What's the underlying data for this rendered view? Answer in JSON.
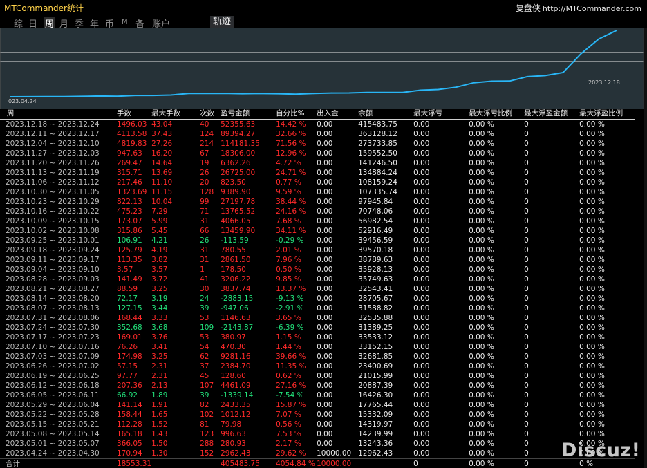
{
  "app_title": "MTCommander统计",
  "brand": {
    "name": "复盘侠",
    "url": "http://MTCommander.com"
  },
  "tabs": [
    {
      "label": "综"
    },
    {
      "label": "日"
    },
    {
      "label": "周"
    },
    {
      "label": "月"
    },
    {
      "label": "季"
    },
    {
      "label": "年"
    },
    {
      "label": "币"
    },
    {
      "label": "M"
    },
    {
      "label": "备"
    },
    {
      "label": "账户"
    }
  ],
  "active_tab": "周",
  "track_button": "轨迹",
  "colors": {
    "profit": "#ff2a2a",
    "loss": "#22e07a",
    "curve": "#29b6f6",
    "chart_bg": "#263238"
  },
  "chart_data": {
    "type": "line",
    "x_start_label": "023.04.24",
    "x_end_label": "2023.12.18",
    "series": [
      {
        "values": [
          12962.43,
          13243.36,
          14239.99,
          14319.97,
          15332.09,
          17765.44,
          16426.3,
          20887.39,
          21015.99,
          23400.69,
          32681.85,
          33152.15,
          33533.12,
          31389.25,
          32535.88,
          31588.82,
          28705.67,
          32543.41,
          35749.63,
          35928.13,
          38789.63,
          39570.18,
          39456.59,
          52916.49,
          56982.54,
          70748.06,
          97945.84,
          107335.74,
          108159.24,
          134884.24,
          141246.5,
          159552.5,
          273733.85,
          363128.12,
          415483.75
        ]
      }
    ]
  },
  "table": {
    "headers": [
      "周",
      "手数",
      "最大手数",
      "次数",
      "盈亏金额",
      "自分比%",
      "出入金",
      "余额",
      "最大浮亏",
      "最大浮亏比例",
      "最大浮盈金额",
      "最大浮盈比例"
    ],
    "rows": [
      {
        "period": "2023.12.18 ~ 2023.12.24",
        "lots": "1496.03",
        "max_lots": "43.04",
        "trades": "40",
        "pnl": "52355.63",
        "pct": "14.42 %",
        "inout": "0.00",
        "balance": "415483.75",
        "max_dd": "0.00",
        "max_dd_pct": "0.00 %",
        "max_fp": "0",
        "max_fp_pct": "0.00 %",
        "sign": "loss"
      },
      {
        "period": "2023.12.11 ~ 2023.12.17",
        "lots": "4113.58",
        "max_lots": "37.43",
        "trades": "124",
        "pnl": "89394.27",
        "pct": "32.66 %",
        "inout": "0.00",
        "balance": "363128.12",
        "max_dd": "0.00",
        "max_dd_pct": "0.00 %",
        "max_fp": "0",
        "max_fp_pct": "0.00 %",
        "sign": "loss"
      },
      {
        "period": "2023.12.04 ~ 2023.12.10",
        "lots": "4819.83",
        "max_lots": "27.26",
        "trades": "214",
        "pnl": "114181.35",
        "pct": "71.56 %",
        "inout": "0.00",
        "balance": "273733.85",
        "max_dd": "0.00",
        "max_dd_pct": "0.00 %",
        "max_fp": "0",
        "max_fp_pct": "0.00 %",
        "sign": "loss"
      },
      {
        "period": "2023.11.27 ~ 2023.12.03",
        "lots": "947.63",
        "max_lots": "16.20",
        "trades": "67",
        "pnl": "18306.00",
        "pct": "12.96 %",
        "inout": "0.00",
        "balance": "159552.50",
        "max_dd": "0.00",
        "max_dd_pct": "0.00 %",
        "max_fp": "0",
        "max_fp_pct": "0.00 %",
        "sign": "loss"
      },
      {
        "period": "2023.11.20 ~ 2023.11.26",
        "lots": "269.47",
        "max_lots": "14.64",
        "trades": "19",
        "pnl": "6362.26",
        "pct": "4.72 %",
        "inout": "0.00",
        "balance": "141246.50",
        "max_dd": "0.00",
        "max_dd_pct": "0.00 %",
        "max_fp": "0",
        "max_fp_pct": "0.00 %",
        "sign": "loss"
      },
      {
        "period": "2023.11.13 ~ 2023.11.19",
        "lots": "315.71",
        "max_lots": "13.69",
        "trades": "26",
        "pnl": "26725.00",
        "pct": "24.71 %",
        "inout": "0.00",
        "balance": "134884.24",
        "max_dd": "0.00",
        "max_dd_pct": "0.00 %",
        "max_fp": "0",
        "max_fp_pct": "0.00 %",
        "sign": "loss"
      },
      {
        "period": "2023.11.06 ~ 2023.11.12",
        "lots": "217.46",
        "max_lots": "11.10",
        "trades": "20",
        "pnl": "823.50",
        "pct": "0.77 %",
        "inout": "0.00",
        "balance": "108159.24",
        "max_dd": "0.00",
        "max_dd_pct": "0.00 %",
        "max_fp": "0",
        "max_fp_pct": "0.00 %",
        "sign": "loss"
      },
      {
        "period": "2023.10.30 ~ 2023.11.05",
        "lots": "1323.69",
        "max_lots": "11.15",
        "trades": "128",
        "pnl": "9389.90",
        "pct": "9.59 %",
        "inout": "0.00",
        "balance": "107335.74",
        "max_dd": "0.00",
        "max_dd_pct": "0.00 %",
        "max_fp": "0",
        "max_fp_pct": "0.00 %",
        "sign": "loss"
      },
      {
        "period": "2023.10.23 ~ 2023.10.29",
        "lots": "822.13",
        "max_lots": "10.04",
        "trades": "99",
        "pnl": "27197.78",
        "pct": "38.44 %",
        "inout": "0.00",
        "balance": "97945.84",
        "max_dd": "0.00",
        "max_dd_pct": "0.00 %",
        "max_fp": "0",
        "max_fp_pct": "0.00 %",
        "sign": "loss"
      },
      {
        "period": "2023.10.16 ~ 2023.10.22",
        "lots": "475.23",
        "max_lots": "7.29",
        "trades": "71",
        "pnl": "13765.52",
        "pct": "24.16 %",
        "inout": "0.00",
        "balance": "70748.06",
        "max_dd": "0.00",
        "max_dd_pct": "0.00 %",
        "max_fp": "0",
        "max_fp_pct": "0.00 %",
        "sign": "loss"
      },
      {
        "period": "2023.10.09 ~ 2023.10.15",
        "lots": "173.07",
        "max_lots": "5.99",
        "trades": "31",
        "pnl": "4066.05",
        "pct": "7.68 %",
        "inout": "0.00",
        "balance": "56982.54",
        "max_dd": "0.00",
        "max_dd_pct": "0.00 %",
        "max_fp": "0",
        "max_fp_pct": "0.00 %",
        "sign": "loss"
      },
      {
        "period": "2023.10.02 ~ 2023.10.08",
        "lots": "315.86",
        "max_lots": "5.45",
        "trades": "66",
        "pnl": "13459.90",
        "pct": "34.11 %",
        "inout": "0.00",
        "balance": "52916.49",
        "max_dd": "0.00",
        "max_dd_pct": "0.00 %",
        "max_fp": "0",
        "max_fp_pct": "0.00 %",
        "sign": "loss"
      },
      {
        "period": "2023.09.25 ~ 2023.10.01",
        "lots": "106.91",
        "max_lots": "4.21",
        "trades": "26",
        "pnl": "-113.59",
        "pct": "-0.29 %",
        "inout": "0.00",
        "balance": "39456.59",
        "max_dd": "0.00",
        "max_dd_pct": "0.00 %",
        "max_fp": "0",
        "max_fp_pct": "0.00 %",
        "sign": "gain"
      },
      {
        "period": "2023.09.18 ~ 2023.09.24",
        "lots": "125.79",
        "max_lots": "4.19",
        "trades": "31",
        "pnl": "780.55",
        "pct": "2.01 %",
        "inout": "0.00",
        "balance": "39570.18",
        "max_dd": "0.00",
        "max_dd_pct": "0.00 %",
        "max_fp": "0",
        "max_fp_pct": "0.00 %",
        "sign": "loss"
      },
      {
        "period": "2023.09.11 ~ 2023.09.17",
        "lots": "113.35",
        "max_lots": "3.82",
        "trades": "31",
        "pnl": "2861.50",
        "pct": "7.96 %",
        "inout": "0.00",
        "balance": "38789.63",
        "max_dd": "0.00",
        "max_dd_pct": "0.00 %",
        "max_fp": "0",
        "max_fp_pct": "0.00 %",
        "sign": "loss"
      },
      {
        "period": "2023.09.04 ~ 2023.09.10",
        "lots": "3.57",
        "max_lots": "3.57",
        "trades": "1",
        "pnl": "178.50",
        "pct": "0.50 %",
        "inout": "0.00",
        "balance": "35928.13",
        "max_dd": "0.00",
        "max_dd_pct": "0.00 %",
        "max_fp": "0",
        "max_fp_pct": "0.00 %",
        "sign": "loss"
      },
      {
        "period": "2023.08.28 ~ 2023.09.03",
        "lots": "141.49",
        "max_lots": "3.72",
        "trades": "41",
        "pnl": "3206.22",
        "pct": "9.85 %",
        "inout": "0.00",
        "balance": "35749.63",
        "max_dd": "0.00",
        "max_dd_pct": "0.00 %",
        "max_fp": "0",
        "max_fp_pct": "0.00 %",
        "sign": "loss"
      },
      {
        "period": "2023.08.21 ~ 2023.08.27",
        "lots": "88.59",
        "max_lots": "3.25",
        "trades": "30",
        "pnl": "3837.74",
        "pct": "13.37 %",
        "inout": "0.00",
        "balance": "32543.41",
        "max_dd": "0.00",
        "max_dd_pct": "0.00 %",
        "max_fp": "0",
        "max_fp_pct": "0.00 %",
        "sign": "loss"
      },
      {
        "period": "2023.08.14 ~ 2023.08.20",
        "lots": "72.17",
        "max_lots": "3.19",
        "trades": "24",
        "pnl": "-2883.15",
        "pct": "-9.13 %",
        "inout": "0.00",
        "balance": "28705.67",
        "max_dd": "0.00",
        "max_dd_pct": "0.00 %",
        "max_fp": "0",
        "max_fp_pct": "0.00 %",
        "sign": "gain"
      },
      {
        "period": "2023.08.07 ~ 2023.08.13",
        "lots": "127.15",
        "max_lots": "3.44",
        "trades": "39",
        "pnl": "-947.06",
        "pct": "-2.91 %",
        "inout": "0.00",
        "balance": "31588.82",
        "max_dd": "0.00",
        "max_dd_pct": "0.00 %",
        "max_fp": "0",
        "max_fp_pct": "0.00 %",
        "sign": "gain"
      },
      {
        "period": "2023.07.31 ~ 2023.08.06",
        "lots": "168.44",
        "max_lots": "3.33",
        "trades": "53",
        "pnl": "1146.63",
        "pct": "3.65 %",
        "inout": "0.00",
        "balance": "32535.88",
        "max_dd": "0.00",
        "max_dd_pct": "0.00 %",
        "max_fp": "0",
        "max_fp_pct": "0.00 %",
        "sign": "loss"
      },
      {
        "period": "2023.07.24 ~ 2023.07.30",
        "lots": "352.68",
        "max_lots": "3.68",
        "trades": "109",
        "pnl": "-2143.87",
        "pct": "-6.39 %",
        "inout": "0.00",
        "balance": "31389.25",
        "max_dd": "0.00",
        "max_dd_pct": "0.00 %",
        "max_fp": "0",
        "max_fp_pct": "0.00 %",
        "sign": "gain"
      },
      {
        "period": "2023.07.17 ~ 2023.07.23",
        "lots": "169.01",
        "max_lots": "3.76",
        "trades": "53",
        "pnl": "380.97",
        "pct": "1.15 %",
        "inout": "0.00",
        "balance": "33533.12",
        "max_dd": "0.00",
        "max_dd_pct": "0.00 %",
        "max_fp": "0",
        "max_fp_pct": "0.00 %",
        "sign": "loss"
      },
      {
        "period": "2023.07.10 ~ 2023.07.16",
        "lots": "76.26",
        "max_lots": "3.41",
        "trades": "54",
        "pnl": "470.30",
        "pct": "1.44 %",
        "inout": "0.00",
        "balance": "33152.15",
        "max_dd": "0.00",
        "max_dd_pct": "0.00 %",
        "max_fp": "0",
        "max_fp_pct": "0.00 %",
        "sign": "loss"
      },
      {
        "period": "2023.07.03 ~ 2023.07.09",
        "lots": "174.98",
        "max_lots": "3.25",
        "trades": "62",
        "pnl": "9281.16",
        "pct": "39.66 %",
        "inout": "0.00",
        "balance": "32681.85",
        "max_dd": "0.00",
        "max_dd_pct": "0.00 %",
        "max_fp": "0",
        "max_fp_pct": "0.00 %",
        "sign": "loss"
      },
      {
        "period": "2023.06.26 ~ 2023.07.02",
        "lots": "57.15",
        "max_lots": "2.31",
        "trades": "37",
        "pnl": "2384.70",
        "pct": "11.35 %",
        "inout": "0.00",
        "balance": "23400.69",
        "max_dd": "0.00",
        "max_dd_pct": "0.00 %",
        "max_fp": "0",
        "max_fp_pct": "0.00 %",
        "sign": "loss"
      },
      {
        "period": "2023.06.19 ~ 2023.06.25",
        "lots": "97.77",
        "max_lots": "2.31",
        "trades": "45",
        "pnl": "128.60",
        "pct": "0.62 %",
        "inout": "0.00",
        "balance": "21015.99",
        "max_dd": "0.00",
        "max_dd_pct": "0.00 %",
        "max_fp": "0",
        "max_fp_pct": "0.00 %",
        "sign": "loss"
      },
      {
        "period": "2023.06.12 ~ 2023.06.18",
        "lots": "207.36",
        "max_lots": "2.13",
        "trades": "107",
        "pnl": "4461.09",
        "pct": "27.16 %",
        "inout": "0.00",
        "balance": "20887.39",
        "max_dd": "0.00",
        "max_dd_pct": "0.00 %",
        "max_fp": "0",
        "max_fp_pct": "0.00 %",
        "sign": "loss"
      },
      {
        "period": "2023.06.05 ~ 2023.06.11",
        "lots": "66.92",
        "max_lots": "1.89",
        "trades": "39",
        "pnl": "-1339.14",
        "pct": "-7.54 %",
        "inout": "0.00",
        "balance": "16426.30",
        "max_dd": "0.00",
        "max_dd_pct": "0.00 %",
        "max_fp": "0",
        "max_fp_pct": "0.00 %",
        "sign": "gain"
      },
      {
        "period": "2023.05.29 ~ 2023.06.04",
        "lots": "141.14",
        "max_lots": "1.91",
        "trades": "82",
        "pnl": "2433.35",
        "pct": "15.87 %",
        "inout": "0.00",
        "balance": "17765.44",
        "max_dd": "0.00",
        "max_dd_pct": "0.00 %",
        "max_fp": "0",
        "max_fp_pct": "0.00 %",
        "sign": "loss"
      },
      {
        "period": "2023.05.22 ~ 2023.05.28",
        "lots": "158.44",
        "max_lots": "1.65",
        "trades": "102",
        "pnl": "1012.12",
        "pct": "7.07 %",
        "inout": "0.00",
        "balance": "15332.09",
        "max_dd": "0.00",
        "max_dd_pct": "0.00 %",
        "max_fp": "0",
        "max_fp_pct": "0.00 %",
        "sign": "loss"
      },
      {
        "period": "2023.05.15 ~ 2023.05.21",
        "lots": "112.28",
        "max_lots": "1.52",
        "trades": "81",
        "pnl": "79.98",
        "pct": "0.56 %",
        "inout": "0.00",
        "balance": "14319.97",
        "max_dd": "0.00",
        "max_dd_pct": "0.00 %",
        "max_fp": "0",
        "max_fp_pct": "0.00 %",
        "sign": "loss"
      },
      {
        "period": "2023.05.08 ~ 2023.05.14",
        "lots": "165.18",
        "max_lots": "1.43",
        "trades": "123",
        "pnl": "996.63",
        "pct": "7.53 %",
        "inout": "0.00",
        "balance": "14239.99",
        "max_dd": "0.00",
        "max_dd_pct": "0.00 %",
        "max_fp": "0",
        "max_fp_pct": "0.00 %",
        "sign": "loss"
      },
      {
        "period": "2023.05.01 ~ 2023.05.07",
        "lots": "366.05",
        "max_lots": "1.50",
        "trades": "288",
        "pnl": "280.93",
        "pct": "2.17 %",
        "inout": "0.00",
        "balance": "13243.36",
        "max_dd": "0.00",
        "max_dd_pct": "0.00 %",
        "max_fp": "0",
        "max_fp_pct": "0.00 %",
        "sign": "loss"
      },
      {
        "period": "2023.04.24 ~ 2023.04.30",
        "lots": "170.94",
        "max_lots": "1.30",
        "trades": "152",
        "pnl": "2962.43",
        "pct": "29.62 %",
        "inout": "10000.00",
        "balance": "12962.43",
        "max_dd": "0.00",
        "max_dd_pct": "0.00 %",
        "max_fp": "0",
        "max_fp_pct": "0.00 %",
        "sign": "loss"
      }
    ],
    "total": {
      "label": "合计",
      "lots": "18553.31",
      "max_lots": "",
      "trades": "",
      "pnl": "405483.75",
      "pct": "4054.84 %",
      "inout": "10000.00",
      "balance": "",
      "max_dd": "0",
      "max_dd_pct": "0.00 %",
      "max_fp": "0",
      "max_fp_pct": "0 %"
    }
  },
  "watermark": "Discuz!"
}
